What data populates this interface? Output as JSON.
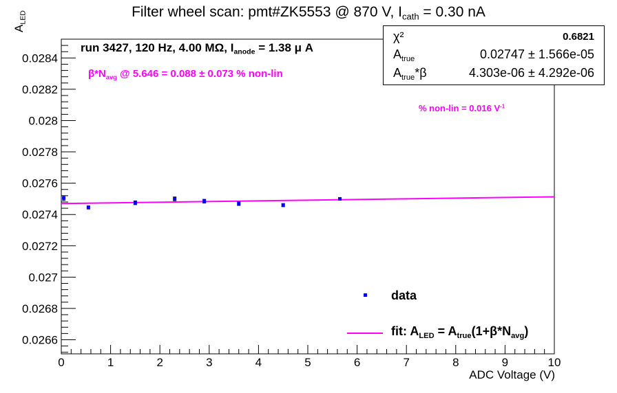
{
  "title_parts": {
    "main": "Filter wheel scan: pmt#ZK5553 @   870 V, I",
    "sub": "cath",
    "tail": " = 0.30 nA"
  },
  "stats": {
    "chi2_label": "χ²",
    "chi2_value": "0.6821",
    "a_true_label": "A",
    "a_true_sub": "true",
    "a_true_value": "0.02747 ± 1.566e-05",
    "a_true_beta_label": "A",
    "a_true_beta_sub": "true",
    "a_true_beta_tail": "*β",
    "a_true_beta_value": "4.303e-06 ± 4.292e-06"
  },
  "run_info": {
    "main": "run 3427, 120 Hz, 4.00 MΩ, I",
    "sub": "anode",
    "tail": " = 1.38 μ A"
  },
  "beta_note": {
    "prefix": "β*N",
    "sub": "avg",
    "tail": " @ 5.646 = 0.088 ± 0.073 % non-lin"
  },
  "nonlin_note": {
    "main": "% non-lin = 0.016 V",
    "sup": "-1"
  },
  "legend": {
    "data_label": "data",
    "fit_prefix": "fit: A",
    "fit_sub1": "LED",
    "fit_mid": " = A",
    "fit_sub2": "true",
    "fit_mid2": "(1+β*N",
    "fit_sub3": "avg",
    "fit_tail": ")"
  },
  "chart_data": {
    "type": "scatter",
    "title": "Filter wheel scan: pmt#ZK5553 @ 870 V, I_cath = 0.30 nA",
    "xlabel": "ADC Voltage (V)",
    "ylabel": "A_LED",
    "xlim": [
      0,
      10
    ],
    "ylim": [
      0.02651,
      0.02852
    ],
    "x_ticks": [
      "0",
      "1",
      "2",
      "3",
      "4",
      "5",
      "6",
      "7",
      "8",
      "9",
      "10"
    ],
    "y_ticks": [
      "0.0266",
      "0.0268",
      "0.027",
      "0.0272",
      "0.0274",
      "0.0276",
      "0.0278",
      "0.028",
      "0.0282",
      "0.0284"
    ],
    "y_tick_values": [
      0.0266,
      0.0268,
      0.027,
      0.0272,
      0.0274,
      0.0276,
      0.0278,
      0.028,
      0.0282,
      0.0284
    ],
    "grid": false,
    "legend_position": "bottom-right",
    "series": [
      {
        "name": "data",
        "color": "#0000ff",
        "x": [
          0.05,
          0.55,
          1.5,
          2.3,
          2.9,
          3.6,
          4.5,
          5.65
        ],
        "y": [
          0.027505,
          0.027445,
          0.027475,
          0.0275,
          0.027485,
          0.02747,
          0.02746,
          0.0275
        ],
        "yerr": [
          1.5e-05,
          1e-05,
          1.2e-05,
          1.2e-05,
          1.2e-05,
          1.2e-05,
          1e-05,
          8e-06
        ]
      },
      {
        "name": "fit: A_LED = A_true(1+β*N_avg)",
        "color": "#ff00ff",
        "type": "line",
        "x": [
          0,
          10
        ],
        "y": [
          0.02747,
          0.027513
        ]
      }
    ]
  }
}
